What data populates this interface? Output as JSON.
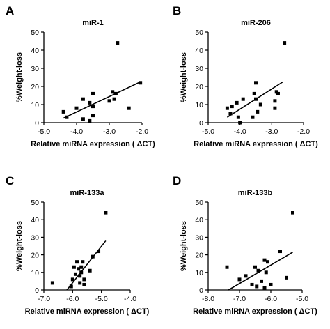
{
  "figure": {
    "panels": [
      "A",
      "B",
      "C",
      "D"
    ]
  },
  "chart_data": [
    {
      "panel": "A",
      "type": "scatter",
      "title": "miR-1",
      "xlabel": "Relative miRNA expression ( ΔCT)",
      "ylabel": "%Weight-loss",
      "xlim": [
        -5.0,
        -2.0
      ],
      "ylim": [
        0,
        50
      ],
      "xticks": [
        -5.0,
        -4.0,
        -3.0,
        -2.0
      ],
      "xtick_labels": [
        "-5.0",
        "-4.0",
        "-3.0",
        "-2.0"
      ],
      "yticks": [
        0,
        10,
        20,
        30,
        40,
        50
      ],
      "ytick_labels": [
        "0",
        "10",
        "20",
        "30",
        "40",
        "50"
      ],
      "grid": false,
      "points": [
        {
          "x": -4.4,
          "y": 6
        },
        {
          "x": -4.3,
          "y": 3
        },
        {
          "x": -4.0,
          "y": 8
        },
        {
          "x": -3.8,
          "y": 2
        },
        {
          "x": -3.8,
          "y": 13
        },
        {
          "x": -3.6,
          "y": 11
        },
        {
          "x": -3.6,
          "y": 1
        },
        {
          "x": -3.5,
          "y": 4
        },
        {
          "x": -3.5,
          "y": 9
        },
        {
          "x": -3.5,
          "y": 16
        },
        {
          "x": -3.0,
          "y": 12
        },
        {
          "x": -2.9,
          "y": 17
        },
        {
          "x": -2.85,
          "y": 13
        },
        {
          "x": -2.8,
          "y": 16
        },
        {
          "x": -2.75,
          "y": 44
        },
        {
          "x": -2.4,
          "y": 8
        },
        {
          "x": -2.05,
          "y": 22
        }
      ],
      "regression": {
        "x": [
          -4.4,
          -2.05
        ],
        "y": [
          2.5,
          22.5
        ]
      }
    },
    {
      "panel": "B",
      "type": "scatter",
      "title": "miR-206",
      "xlabel": "Relative miRNA expression ( ΔCT)",
      "ylabel": "%Weight-loss",
      "xlim": [
        -5.0,
        -2.0
      ],
      "ylim": [
        0,
        50
      ],
      "xticks": [
        -5.0,
        -4.0,
        -3.0,
        -2.0
      ],
      "xtick_labels": [
        "-5.0",
        "-4.0",
        "-3.0",
        "-2.0"
      ],
      "yticks": [
        0,
        10,
        20,
        30,
        40,
        50
      ],
      "ytick_labels": [
        "0",
        "10",
        "20",
        "30",
        "40",
        "50"
      ],
      "grid": false,
      "points": [
        {
          "x": -4.4,
          "y": 8
        },
        {
          "x": -4.3,
          "y": 5
        },
        {
          "x": -4.25,
          "y": 9
        },
        {
          "x": -4.1,
          "y": 11
        },
        {
          "x": -4.05,
          "y": 3
        },
        {
          "x": -4.0,
          "y": 0
        },
        {
          "x": -3.9,
          "y": 13
        },
        {
          "x": -3.6,
          "y": 3
        },
        {
          "x": -3.55,
          "y": 16
        },
        {
          "x": -3.5,
          "y": 13
        },
        {
          "x": -3.5,
          "y": 22
        },
        {
          "x": -3.45,
          "y": 6
        },
        {
          "x": -3.35,
          "y": 10
        },
        {
          "x": -2.9,
          "y": 12
        },
        {
          "x": -2.9,
          "y": 8
        },
        {
          "x": -2.85,
          "y": 17
        },
        {
          "x": -2.8,
          "y": 16
        },
        {
          "x": -2.6,
          "y": 44
        }
      ],
      "regression": {
        "x": [
          -4.4,
          -2.65
        ],
        "y": [
          3,
          22.5
        ]
      }
    },
    {
      "panel": "C",
      "type": "scatter",
      "title": "miR-133a",
      "xlabel": "Relative miRNA expression ( ΔCT)",
      "ylabel": "%Weight-loss",
      "xlim": [
        -7.0,
        -4.0
      ],
      "ylim": [
        0,
        50
      ],
      "xticks": [
        -7.0,
        -6.0,
        -5.0,
        -4.0
      ],
      "xtick_labels": [
        "-7.0",
        "-6.0",
        "-5.0",
        "-4.0"
      ],
      "yticks": [
        0,
        10,
        20,
        30,
        40,
        50
      ],
      "ytick_labels": [
        "0",
        "10",
        "20",
        "30",
        "40",
        "50"
      ],
      "grid": false,
      "points": [
        {
          "x": -6.7,
          "y": 4
        },
        {
          "x": -6.05,
          "y": 2
        },
        {
          "x": -6.0,
          "y": 6
        },
        {
          "x": -5.95,
          "y": 13
        },
        {
          "x": -5.9,
          "y": 9
        },
        {
          "x": -5.85,
          "y": 16
        },
        {
          "x": -5.8,
          "y": 12
        },
        {
          "x": -5.75,
          "y": 4
        },
        {
          "x": -5.75,
          "y": 8
        },
        {
          "x": -5.7,
          "y": 13
        },
        {
          "x": -5.7,
          "y": 10
        },
        {
          "x": -5.65,
          "y": 16
        },
        {
          "x": -5.6,
          "y": 6
        },
        {
          "x": -5.6,
          "y": 3
        },
        {
          "x": -5.4,
          "y": 11
        },
        {
          "x": -5.3,
          "y": 19
        },
        {
          "x": -5.1,
          "y": 22
        },
        {
          "x": -4.85,
          "y": 44
        }
      ],
      "regression": {
        "x": [
          -6.2,
          -4.85
        ],
        "y": [
          0,
          28
        ]
      }
    },
    {
      "panel": "D",
      "type": "scatter",
      "title": "miR-133b",
      "xlabel": "Relative miRNA expression ( ΔCT)",
      "ylabel": "%Weight-loss",
      "xlim": [
        -8.0,
        -5.0
      ],
      "ylim": [
        0,
        50
      ],
      "xticks": [
        -8.0,
        -7.0,
        -6.0,
        -5.0
      ],
      "xtick_labels": [
        "-8.0",
        "-7.0",
        "-6.0",
        "-5.0"
      ],
      "yticks": [
        0,
        10,
        20,
        30,
        40,
        50
      ],
      "ytick_labels": [
        "0",
        "10",
        "20",
        "30",
        "40",
        "50"
      ],
      "grid": false,
      "points": [
        {
          "x": -7.4,
          "y": 13
        },
        {
          "x": -7.0,
          "y": 6
        },
        {
          "x": -6.8,
          "y": 8
        },
        {
          "x": -6.6,
          "y": 3
        },
        {
          "x": -6.5,
          "y": 13
        },
        {
          "x": -6.45,
          "y": 2
        },
        {
          "x": -6.4,
          "y": 11
        },
        {
          "x": -6.3,
          "y": 5
        },
        {
          "x": -6.2,
          "y": 17
        },
        {
          "x": -6.2,
          "y": 1
        },
        {
          "x": -6.15,
          "y": 10
        },
        {
          "x": -6.1,
          "y": 16
        },
        {
          "x": -6.0,
          "y": 3
        },
        {
          "x": -5.7,
          "y": 22
        },
        {
          "x": -5.5,
          "y": 7
        },
        {
          "x": -5.3,
          "y": 44
        }
      ],
      "regression": {
        "x": [
          -7.35,
          -5.3
        ],
        "y": [
          0,
          21.5
        ]
      }
    }
  ]
}
